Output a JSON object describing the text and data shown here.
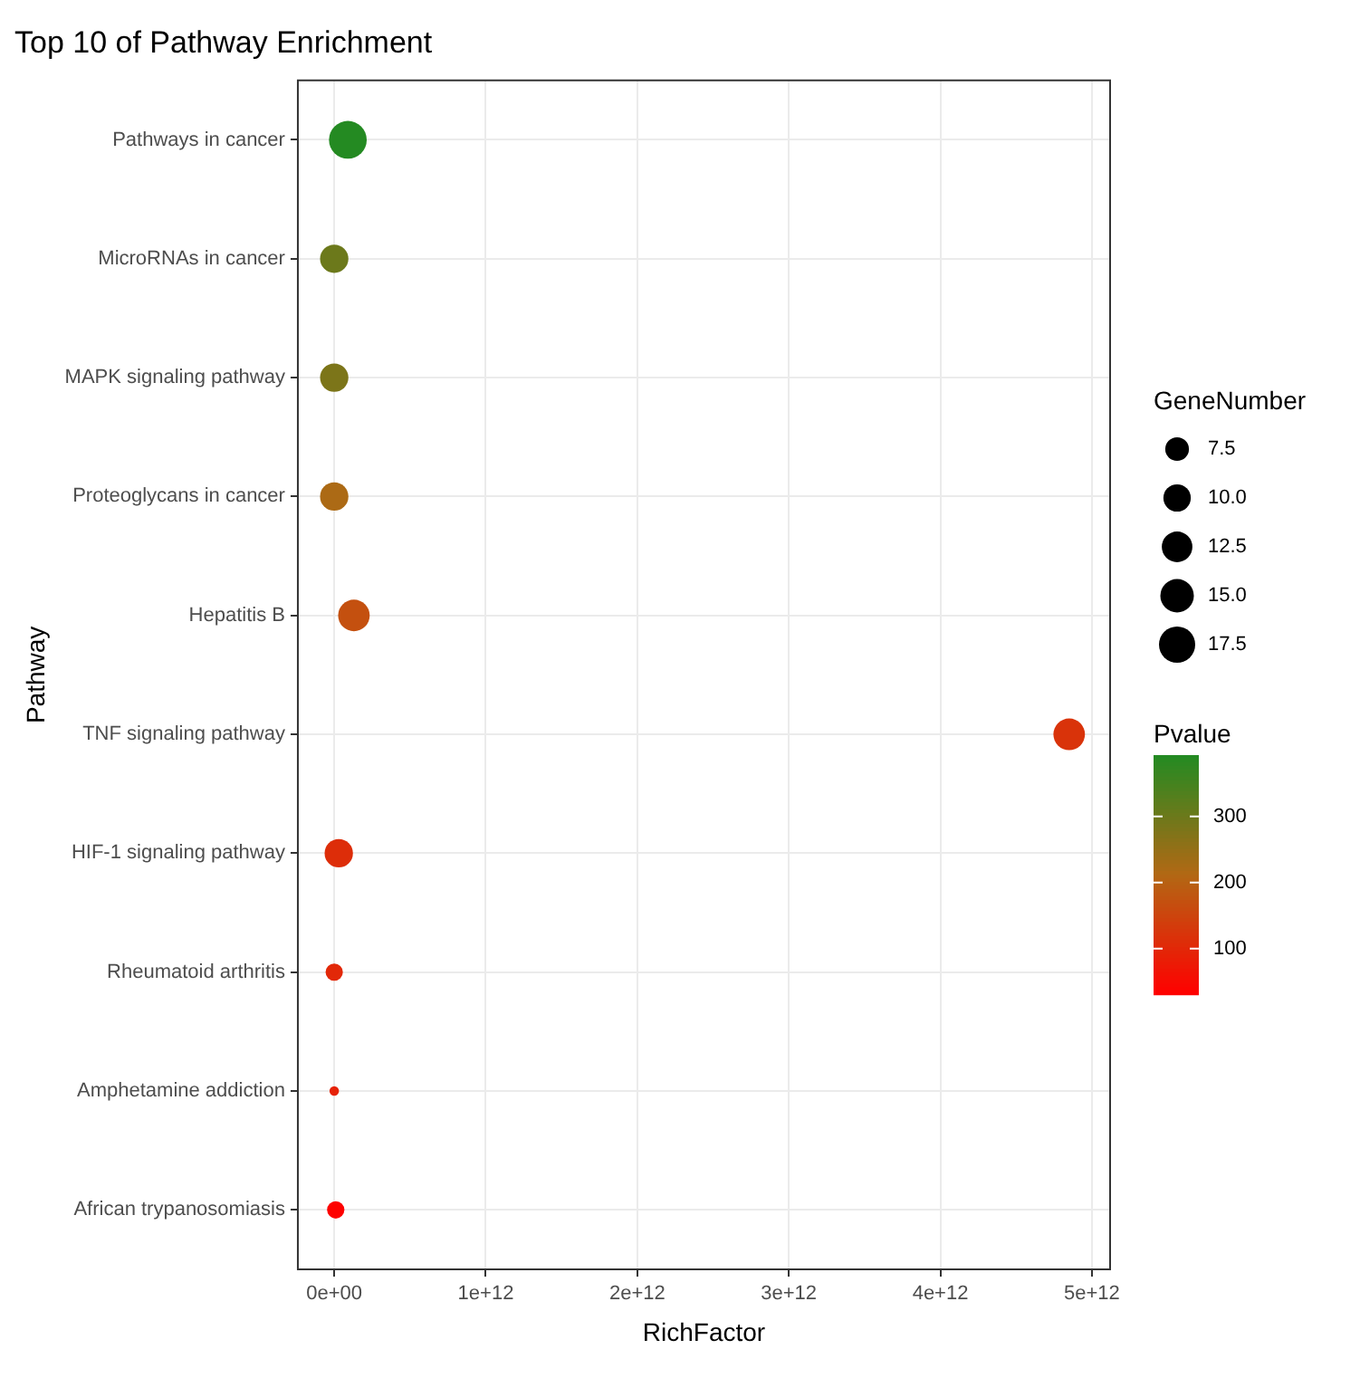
{
  "chart_data": {
    "type": "bubble",
    "title": "Top 10 of Pathway Enrichment",
    "xlabel": "RichFactor",
    "ylabel": "Pathway",
    "legend_title": "GeneNumber",
    "clabel": "Pvalue",
    "categories": [
      "Pathways in cancer",
      "MicroRNAs in cancer",
      "MAPK signaling pathway",
      "Proteoglycans in cancer",
      "Hepatitis B",
      "TNF signaling pathway",
      "HIF-1 signaling pathway",
      "Rheumatoid arthritis",
      "Amphetamine addiction",
      "African trypanosomiasis"
    ],
    "values": [
      90000000000.0,
      0,
      0,
      0,
      130000000000.0,
      4850000000000.0,
      30000000000.0,
      0,
      0,
      10000000000.0
    ],
    "sizes": [
      19,
      10.7,
      10.7,
      10.7,
      13.3,
      13.3,
      10.7,
      4,
      1.2,
      4
    ],
    "cvalues": [
      390,
      300,
      280,
      220,
      170,
      120,
      110,
      100,
      90,
      35
    ],
    "orientation": "horizontal",
    "size_legend": [
      {
        "value": 7.5,
        "label": "7.5"
      },
      {
        "value": 10,
        "label": "10.0"
      },
      {
        "value": 12.5,
        "label": "12.5"
      },
      {
        "value": 15,
        "label": "15.0"
      },
      {
        "value": 17.5,
        "label": "17.5"
      }
    ],
    "clim": [
      31,
      393
    ],
    "cticks": [
      {
        "value": 100,
        "label": "100"
      },
      {
        "value": 200,
        "label": "200"
      },
      {
        "value": 300,
        "label": "300"
      }
    ],
    "xlim": [
      -240000000000.0,
      5120000000000.0
    ],
    "xticks": [
      {
        "value": 0,
        "label": "0e+00"
      },
      {
        "value": 1000000000000.0,
        "label": "1e+12"
      },
      {
        "value": 2000000000000.0,
        "label": "2e+12"
      },
      {
        "value": 3000000000000.0,
        "label": "3e+12"
      },
      {
        "value": 4000000000000.0,
        "label": "4e+12"
      },
      {
        "value": 5000000000000.0,
        "label": "5e+12"
      }
    ],
    "grid": true
  }
}
